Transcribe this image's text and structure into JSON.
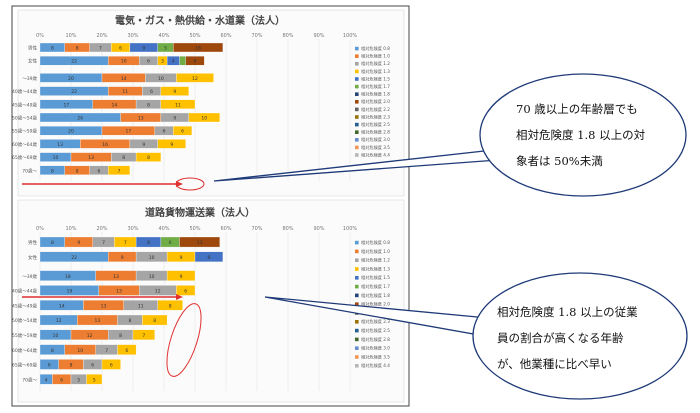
{
  "legend_labels": [
    "相対危険度 0.8",
    "相対危険度 1.0",
    "相対危険度 1.2",
    "相対危険度 1.3",
    "相対危険度 1.5",
    "相対危険度 1.7",
    "相対危険度 1.8",
    "相対危険度 2.0",
    "相対危険度 2.2",
    "相対危険度 2.3",
    "相対危険度 2.5",
    "相対危険度 2.8",
    "相対危険度 3.0",
    "相対危険度 3.5",
    "相対危険度 4.4"
  ],
  "legend_colors": [
    "#5b9bd5",
    "#ed7d31",
    "#a5a5a5",
    "#ffc000",
    "#4472c4",
    "#70ad47",
    "#264478",
    "#9e480e",
    "#636363",
    "#997300",
    "#255e91",
    "#43682b",
    "#698ed0",
    "#f1975a",
    "#b7b7b7"
  ],
  "axis_ticks": [
    "0%",
    "10%",
    "20%",
    "30%",
    "40%",
    "50%",
    "60%",
    "70%",
    "80%",
    "90%",
    "100%"
  ],
  "chart_data": [
    {
      "type": "bar",
      "title": "電気・ガス・熱供給・水道業（法人）",
      "categories": [
        "男性",
        "女性",
        "～39歳",
        "40歳～44歳",
        "45歳～49歳",
        "50歳～54歳",
        "55歳～59歳",
        "60歳～64歳",
        "65歳～69歳",
        "70歳～"
      ],
      "series_labels": [
        "相対危険度 0.8",
        "相対危険度 1.0",
        "相対危険度 1.2",
        "相対危険度 1.3",
        "相対危険度 1.5",
        "相対危険度 1.7",
        "相対危険度 1.8",
        "相対危険度 2.0",
        "相対危険度 2.2",
        "相対危険度 2.3",
        "相対危険度 2.5",
        "相対危険度 2.8",
        "相対危険度 3.0",
        "相対危険度 3.5",
        "相対危険度 4.4"
      ],
      "rows": [
        [
          8,
          8,
          7,
          6,
          9,
          5,
          0,
          16,
          0,
          0,
          0,
          0,
          0,
          0,
          0
        ],
        [
          22,
          10,
          6,
          3,
          4,
          2,
          0,
          6,
          0,
          0,
          0,
          0,
          0,
          0,
          0
        ],
        [
          20,
          14,
          10,
          12,
          0,
          0,
          0,
          0,
          0,
          0,
          0,
          0,
          0,
          0,
          0
        ],
        [
          22,
          11,
          6,
          9,
          0,
          0,
          0,
          0,
          0,
          0,
          0,
          0,
          0,
          0,
          0
        ],
        [
          17,
          14,
          8,
          11,
          0,
          0,
          0,
          0,
          0,
          0,
          0,
          0,
          0,
          0,
          0
        ],
        [
          26,
          13,
          9,
          10,
          0,
          0,
          0,
          0,
          0,
          0,
          0,
          0,
          0,
          0,
          0
        ],
        [
          20,
          17,
          6,
          6,
          0,
          0,
          0,
          0,
          0,
          0,
          0,
          0,
          0,
          0,
          0
        ],
        [
          13,
          16,
          9,
          9,
          0,
          0,
          0,
          0,
          0,
          0,
          0,
          0,
          0,
          0,
          0
        ],
        [
          10,
          13,
          8,
          8,
          0,
          0,
          0,
          0,
          0,
          0,
          0,
          0,
          0,
          0,
          0
        ],
        [
          8,
          8,
          6,
          7,
          0,
          0,
          0,
          0,
          0,
          0,
          0,
          0,
          0,
          0,
          0
        ]
      ],
      "xlim": [
        0,
        100
      ]
    },
    {
      "type": "bar",
      "title": "道路貨物運送業（法人）",
      "categories": [
        "男性",
        "女性",
        "～39歳",
        "40歳～44歳",
        "45歳～49歳",
        "50歳～54歳",
        "55歳～59歳",
        "60歳～64歳",
        "65歳～69歳",
        "70歳～"
      ],
      "series_labels": [
        "相対危険度 0.8",
        "相対危険度 1.0",
        "相対危険度 1.2",
        "相対危険度 1.3",
        "相対危険度 1.5",
        "相対危険度 1.7",
        "相対危険度 1.8",
        "相対危険度 2.0",
        "相対危険度 2.2",
        "相対危険度 2.3",
        "相対危険度 2.5",
        "相対危険度 2.8",
        "相対危険度 3.0",
        "相対危険度 3.5",
        "相対危険度 4.4"
      ],
      "rows": [
        [
          8,
          9,
          7,
          7,
          8,
          6,
          0,
          13,
          0,
          0,
          0,
          0,
          0,
          0,
          0
        ],
        [
          22,
          9,
          10,
          9,
          9,
          0,
          0,
          0,
          0,
          0,
          0,
          0,
          0,
          0,
          0
        ],
        [
          18,
          13,
          10,
          9,
          0,
          0,
          0,
          0,
          0,
          0,
          0,
          0,
          0,
          0,
          0
        ],
        [
          19,
          13,
          12,
          6,
          0,
          0,
          0,
          0,
          0,
          0,
          0,
          0,
          0,
          0,
          0
        ],
        [
          14,
          13,
          11,
          8,
          0,
          0,
          0,
          0,
          0,
          0,
          0,
          0,
          0,
          0,
          0
        ],
        [
          12,
          13,
          8,
          8,
          0,
          0,
          0,
          0,
          0,
          0,
          0,
          0,
          0,
          0,
          0
        ],
        [
          10,
          12,
          8,
          7,
          0,
          0,
          0,
          0,
          0,
          0,
          0,
          0,
          0,
          0,
          0
        ],
        [
          8,
          10,
          7,
          6,
          0,
          0,
          0,
          0,
          0,
          0,
          0,
          0,
          0,
          0,
          0
        ],
        [
          6,
          8,
          6,
          6,
          0,
          0,
          0,
          0,
          0,
          0,
          0,
          0,
          0,
          0,
          0
        ],
        [
          4,
          6,
          5,
          5,
          0,
          0,
          0,
          0,
          0,
          0,
          0,
          0,
          0,
          0,
          0
        ]
      ],
      "xlim": [
        0,
        100
      ]
    }
  ],
  "callouts": [
    {
      "lines": [
        "70 歳以上の年齢層でも",
        "相対危険度 1.8 以上の対",
        "象者は 50%未満"
      ]
    },
    {
      "lines": [
        "相対危険度 1.8 以上の従業",
        "員の割合が高くなる年齢",
        "が、他業種に比べ早い"
      ]
    }
  ]
}
